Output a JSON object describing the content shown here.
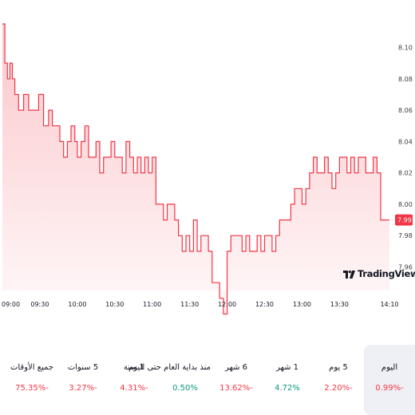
{
  "chart_data": {
    "type": "line",
    "x": [
      "09:00",
      "09:02",
      "09:04",
      "09:06",
      "09:08",
      "09:10",
      "09:13",
      "09:17",
      "09:21",
      "09:25",
      "09:29",
      "09:33",
      "09:37",
      "09:40",
      "09:43",
      "09:46",
      "09:49",
      "09:52",
      "09:55",
      "09:58",
      "10:00",
      "10:03",
      "10:06",
      "10:09",
      "10:12",
      "10:15",
      "10:18",
      "10:21",
      "10:24",
      "10:27",
      "10:30",
      "10:33",
      "10:36",
      "10:39",
      "10:42",
      "10:45",
      "10:48",
      "10:51",
      "10:54",
      "10:57",
      "11:00",
      "11:03",
      "11:06",
      "11:09",
      "11:12",
      "11:15",
      "11:18",
      "11:21",
      "11:24",
      "11:27",
      "11:30",
      "11:33",
      "11:36",
      "11:39",
      "11:42",
      "11:45",
      "11:48",
      "11:51",
      "11:54",
      "11:57",
      "12:00",
      "12:03",
      "12:06",
      "12:09",
      "12:12",
      "12:15",
      "12:18",
      "12:21",
      "12:24",
      "12:27",
      "12:30",
      "12:33",
      "12:36",
      "12:39",
      "12:42",
      "12:45",
      "12:48",
      "12:51",
      "12:54",
      "12:57",
      "13:00",
      "13:03",
      "13:06",
      "13:09",
      "13:12",
      "13:15",
      "13:18",
      "13:21",
      "13:24",
      "13:27",
      "13:30",
      "13:33",
      "13:36",
      "13:39",
      "13:42",
      "13:45",
      "13:48",
      "13:51",
      "13:54",
      "13:57",
      "14:00",
      "14:03",
      "14:06",
      "14:10"
    ],
    "y": [
      8.115,
      8.09,
      8.08,
      8.09,
      8.08,
      8.07,
      8.06,
      8.07,
      8.06,
      8.06,
      8.07,
      8.05,
      8.06,
      8.05,
      8.05,
      8.04,
      8.03,
      8.04,
      8.05,
      8.04,
      8.03,
      8.04,
      8.05,
      8.03,
      8.03,
      8.04,
      8.02,
      8.03,
      8.03,
      8.04,
      8.03,
      8.03,
      8.02,
      8.04,
      8.03,
      8.02,
      8.03,
      8.02,
      8.03,
      8.02,
      8.03,
      8.0,
      8.0,
      7.99,
      8.0,
      8.0,
      7.99,
      7.98,
      7.97,
      7.98,
      7.97,
      7.99,
      7.97,
      7.98,
      7.98,
      7.97,
      7.95,
      7.95,
      7.94,
      7.93,
      7.97,
      7.98,
      7.98,
      7.98,
      7.97,
      7.98,
      7.97,
      7.97,
      7.98,
      7.97,
      7.98,
      7.98,
      7.97,
      7.98,
      7.99,
      7.99,
      7.99,
      8.0,
      8.01,
      8.01,
      8.0,
      8.01,
      8.02,
      8.03,
      8.02,
      8.02,
      8.03,
      8.02,
      8.01,
      8.02,
      8.03,
      8.03,
      8.02,
      8.03,
      8.02,
      8.03,
      8.03,
      8.02,
      8.02,
      8.03,
      8.02,
      7.99,
      7.99,
      7.99
    ],
    "y_ticks": [
      "8.10",
      "8.08",
      "8.06",
      "8.04",
      "8.02",
      "8.00",
      "7.98",
      "7.96"
    ],
    "ylim": [
      7.945,
      8.115
    ],
    "x_ticks": [
      "09:00",
      "09:30",
      "10:00",
      "10:30",
      "11:00",
      "11:30",
      "12:00",
      "12:30",
      "13:00",
      "13:30",
      "14:10"
    ],
    "last_price": "7.99",
    "line_color": "#f23645",
    "fill_color": "#f23645",
    "grid": false,
    "title": "",
    "xlabel": "",
    "ylabel": ""
  },
  "logo": {
    "text": "TradingView",
    "icon": "tradingview-logo-icon"
  },
  "periods": [
    {
      "label": "اليوم",
      "value": "0.99%-",
      "trend": "neg",
      "active": true
    },
    {
      "label": "5 يوم",
      "value": "2.20%-",
      "trend": "neg",
      "active": false
    },
    {
      "label": "1 شهر",
      "value": "4.72%",
      "trend": "pos",
      "active": false
    },
    {
      "label": "6 شهر",
      "value": "13.62%-",
      "trend": "neg",
      "active": false
    },
    {
      "label": "منذ بداية العام حتى اليوم",
      "value": "0.50%",
      "trend": "pos",
      "active": false
    },
    {
      "label": "1 سنة",
      "value": "4.31%-",
      "trend": "neg",
      "active": false
    },
    {
      "label": "5 سنوات",
      "value": "3.27%-",
      "trend": "neg",
      "active": false
    },
    {
      "label": "جميع الأوقات",
      "value": "75.35%-",
      "trend": "neg",
      "active": false
    }
  ],
  "colors": {
    "negative": "#f23645",
    "positive": "#089981",
    "active_bg": "#eef0f5"
  }
}
